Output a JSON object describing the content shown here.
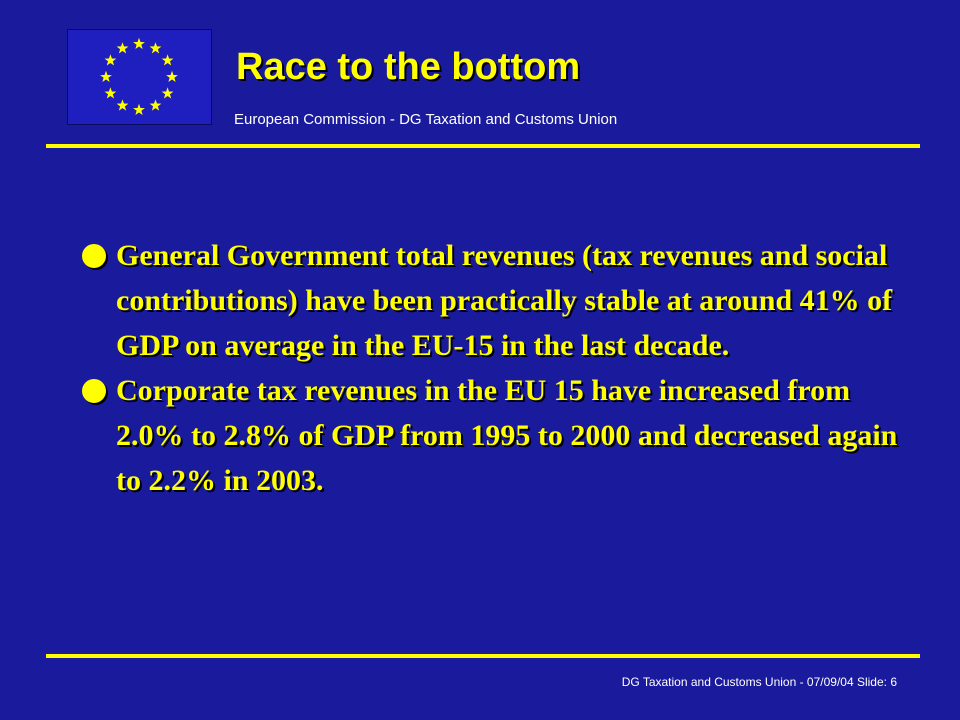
{
  "header": {
    "title": "Race to the bottom",
    "subtitle": "European Commission - DG Taxation and Customs Union"
  },
  "content": {
    "bullets": [
      "General Government total revenues (tax revenues and social contributions) have been practically stable at around 41% of GDP on average in the EU-15 in the last decade.",
      "Corporate tax revenues in the EU 15 have increased from 2.0% to 2.8% of GDP from 1995 to 2000 and decreased again to 2.2% in 2003."
    ]
  },
  "footer": {
    "text": "DG Taxation and Customs Union  - 07/09/04 Slide: 6"
  },
  "colors": {
    "background": "#1a1a9c",
    "accent": "#ffff00",
    "flag_blue": "#1f1fbf",
    "text_white": "#ffffff"
  },
  "icons": {
    "logo": "eu-flag-icon",
    "bullet": "round-bullet-icon"
  }
}
